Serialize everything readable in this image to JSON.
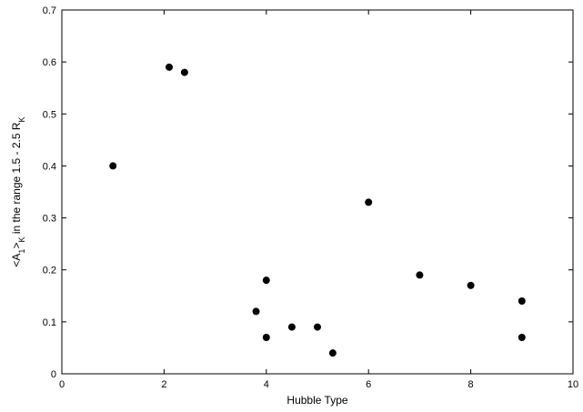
{
  "chart_data": {
    "type": "scatter",
    "title": "",
    "xlabel": "Hubble Type",
    "ylabel": {
      "p1": "<A",
      "s1": "1",
      "p2": ">",
      "s2": "K",
      "p3": " in the range 1.5 - 2.5 R",
      "s3": "K"
    },
    "xlim": [
      0,
      10
    ],
    "ylim": [
      0,
      0.7
    ],
    "xticks": [
      0,
      2,
      4,
      6,
      8,
      10
    ],
    "yticks": [
      0,
      0.1,
      0.2,
      0.3,
      0.4,
      0.5,
      0.6,
      0.7
    ],
    "grid": false,
    "marker_color": "#000000",
    "series": [
      {
        "x": [
          1.0,
          2.1,
          2.4,
          3.8,
          4.0,
          4.0,
          4.5,
          5.0,
          5.3,
          6.0,
          7.0,
          8.0,
          9.0,
          9.0
        ],
        "y": [
          0.4,
          0.59,
          0.58,
          0.12,
          0.18,
          0.07,
          0.09,
          0.09,
          0.04,
          0.33,
          0.19,
          0.17,
          0.14,
          0.07
        ]
      }
    ]
  }
}
